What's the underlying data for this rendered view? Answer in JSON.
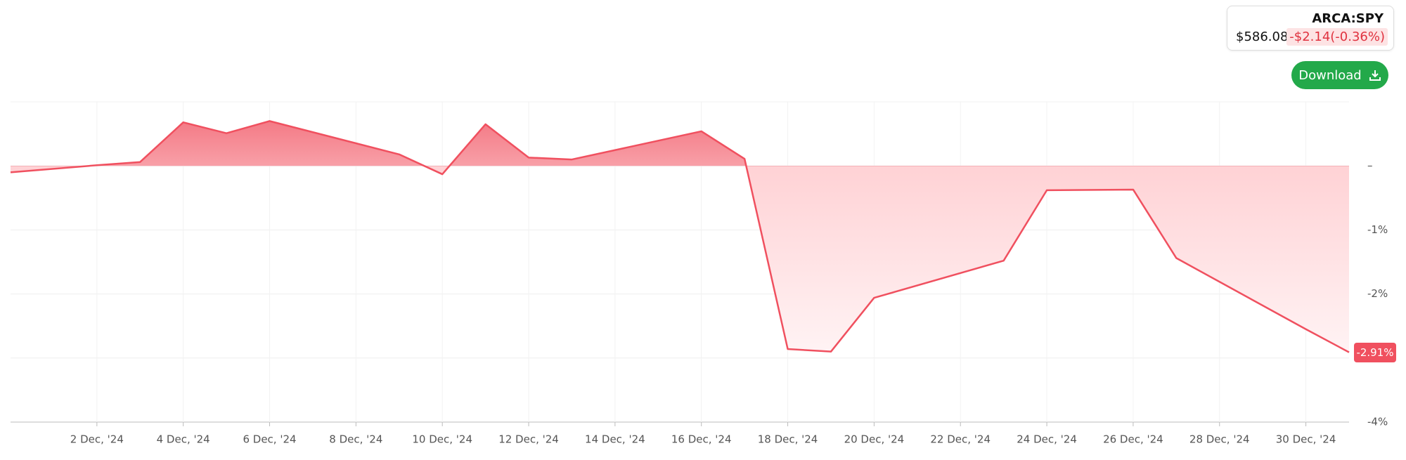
{
  "header": {
    "symbol": "ARCA:SPY",
    "price": "$586.08",
    "change": "-$2.14(-0.36%)",
    "button": "Download"
  },
  "chart_data": {
    "type": "area",
    "x": [
      "2024-11-30",
      "2024-12-02",
      "2024-12-03",
      "2024-12-04",
      "2024-12-05",
      "2024-12-06",
      "2024-12-09",
      "2024-12-10",
      "2024-12-11",
      "2024-12-12",
      "2024-12-13",
      "2024-12-16",
      "2024-12-17",
      "2024-12-18",
      "2024-12-19",
      "2024-12-20",
      "2024-12-23",
      "2024-12-24",
      "2024-12-26",
      "2024-12-27",
      "2024-12-30",
      "2024-12-31"
    ],
    "series": [
      {
        "name": "ARCA:SPY",
        "color": "#f0505f",
        "values": [
          -0.1,
          0.01,
          0.06,
          0.68,
          0.51,
          0.7,
          0.18,
          -0.13,
          0.65,
          0.13,
          0.1,
          0.54,
          0.11,
          -2.86,
          -2.9,
          -2.06,
          -1.48,
          -0.38,
          -0.37,
          -1.44,
          -2.55,
          -2.91
        ],
        "value_labels": [
          null,
          null,
          null,
          null,
          null,
          null,
          null,
          null,
          null,
          null,
          null,
          null,
          null,
          null,
          null,
          null,
          null,
          null,
          null,
          null,
          null,
          "-2.91%"
        ]
      }
    ],
    "xlim": [
      "2024-11-30",
      "2024-12-31"
    ],
    "xticks": [
      {
        "value": "2024-12-02",
        "label": "2 Dec, '24"
      },
      {
        "value": "2024-12-04",
        "label": "4 Dec, '24"
      },
      {
        "value": "2024-12-06",
        "label": "6 Dec, '24"
      },
      {
        "value": "2024-12-08",
        "label": "8 Dec, '24"
      },
      {
        "value": "2024-12-10",
        "label": "10 Dec, '24"
      },
      {
        "value": "2024-12-12",
        "label": "12 Dec, '24"
      },
      {
        "value": "2024-12-14",
        "label": "14 Dec, '24"
      },
      {
        "value": "2024-12-16",
        "label": "16 Dec, '24"
      },
      {
        "value": "2024-12-18",
        "label": "18 Dec, '24"
      },
      {
        "value": "2024-12-20",
        "label": "20 Dec, '24"
      },
      {
        "value": "2024-12-22",
        "label": "22 Dec, '24"
      },
      {
        "value": "2024-12-24",
        "label": "24 Dec, '24"
      },
      {
        "value": "2024-12-26",
        "label": "26 Dec, '24"
      },
      {
        "value": "2024-12-28",
        "label": "28 Dec, '24"
      },
      {
        "value": "2024-12-30",
        "label": "30 Dec, '24"
      }
    ],
    "ylim": [
      -4,
      1
    ],
    "yticks": [
      {
        "value": 0,
        "label": "–"
      },
      {
        "value": -1,
        "label": "-1%"
      },
      {
        "value": -2,
        "label": "-2%"
      },
      {
        "value": -3,
        "label": ""
      },
      {
        "value": -4,
        "label": "-4%"
      }
    ],
    "grid": true
  }
}
